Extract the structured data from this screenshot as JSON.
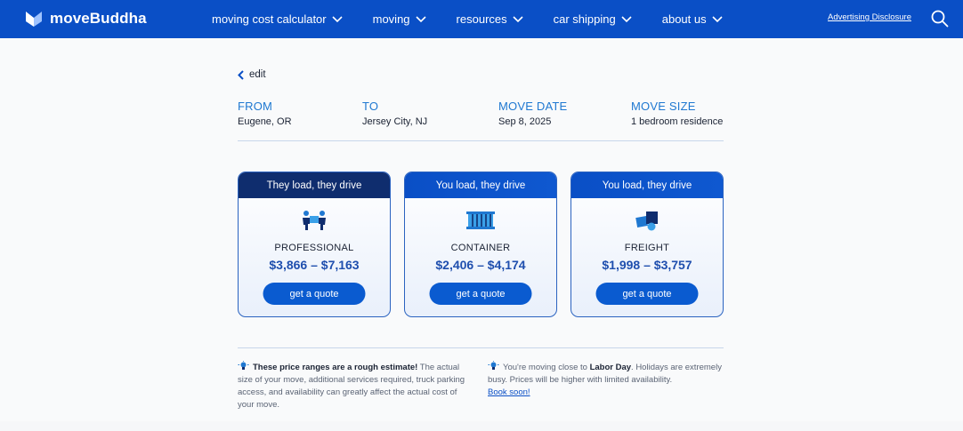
{
  "header": {
    "brand": "moveBuddha",
    "nav": [
      {
        "label": "moving cost calculator"
      },
      {
        "label": "moving"
      },
      {
        "label": "resources"
      },
      {
        "label": "car shipping"
      },
      {
        "label": "about us"
      }
    ],
    "disclosure": "Advertising Disclosure",
    "search_icon": "search-icon"
  },
  "edit": {
    "label": "edit"
  },
  "summary": {
    "from": {
      "label": "FROM",
      "value": "Eugene, OR"
    },
    "to": {
      "label": "TO",
      "value": "Jersey City, NJ"
    },
    "date": {
      "label": "MOVE DATE",
      "value": "Sep 8, 2025"
    },
    "size": {
      "label": "MOVE SIZE",
      "value": "1 bedroom residence"
    }
  },
  "cards": [
    {
      "header": "They load, they drive",
      "type": "PROFESSIONAL",
      "price": "$3,866 – $7,163",
      "button": "get a quote",
      "icon": "movers-icon"
    },
    {
      "header": "You load, they drive",
      "type": "CONTAINER",
      "price": "$2,406 – $4,174",
      "button": "get a quote",
      "icon": "container-icon"
    },
    {
      "header": "You load, they drive",
      "type": "FREIGHT",
      "price": "$1,998 – $3,757",
      "button": "get a quote",
      "icon": "freight-icon"
    }
  ],
  "notes": {
    "estimate": {
      "bold": "These price ranges are a rough estimate!",
      "text": " The actual size of your move, additional services required, truck parking access, and availability can greatly affect the actual cost of your move."
    },
    "holiday": {
      "pre": "You're moving close to ",
      "bold": "Labor Day",
      "text": ". Holidays are extremely busy. Prices will be higher with limited availability.",
      "link": "Book soon!"
    }
  },
  "colors": {
    "brand": "#0a4fc6",
    "accent": "#1f78d1",
    "price": "#1f4fae",
    "button": "#0a5bd0",
    "dark_header": "#0f2d6e"
  }
}
